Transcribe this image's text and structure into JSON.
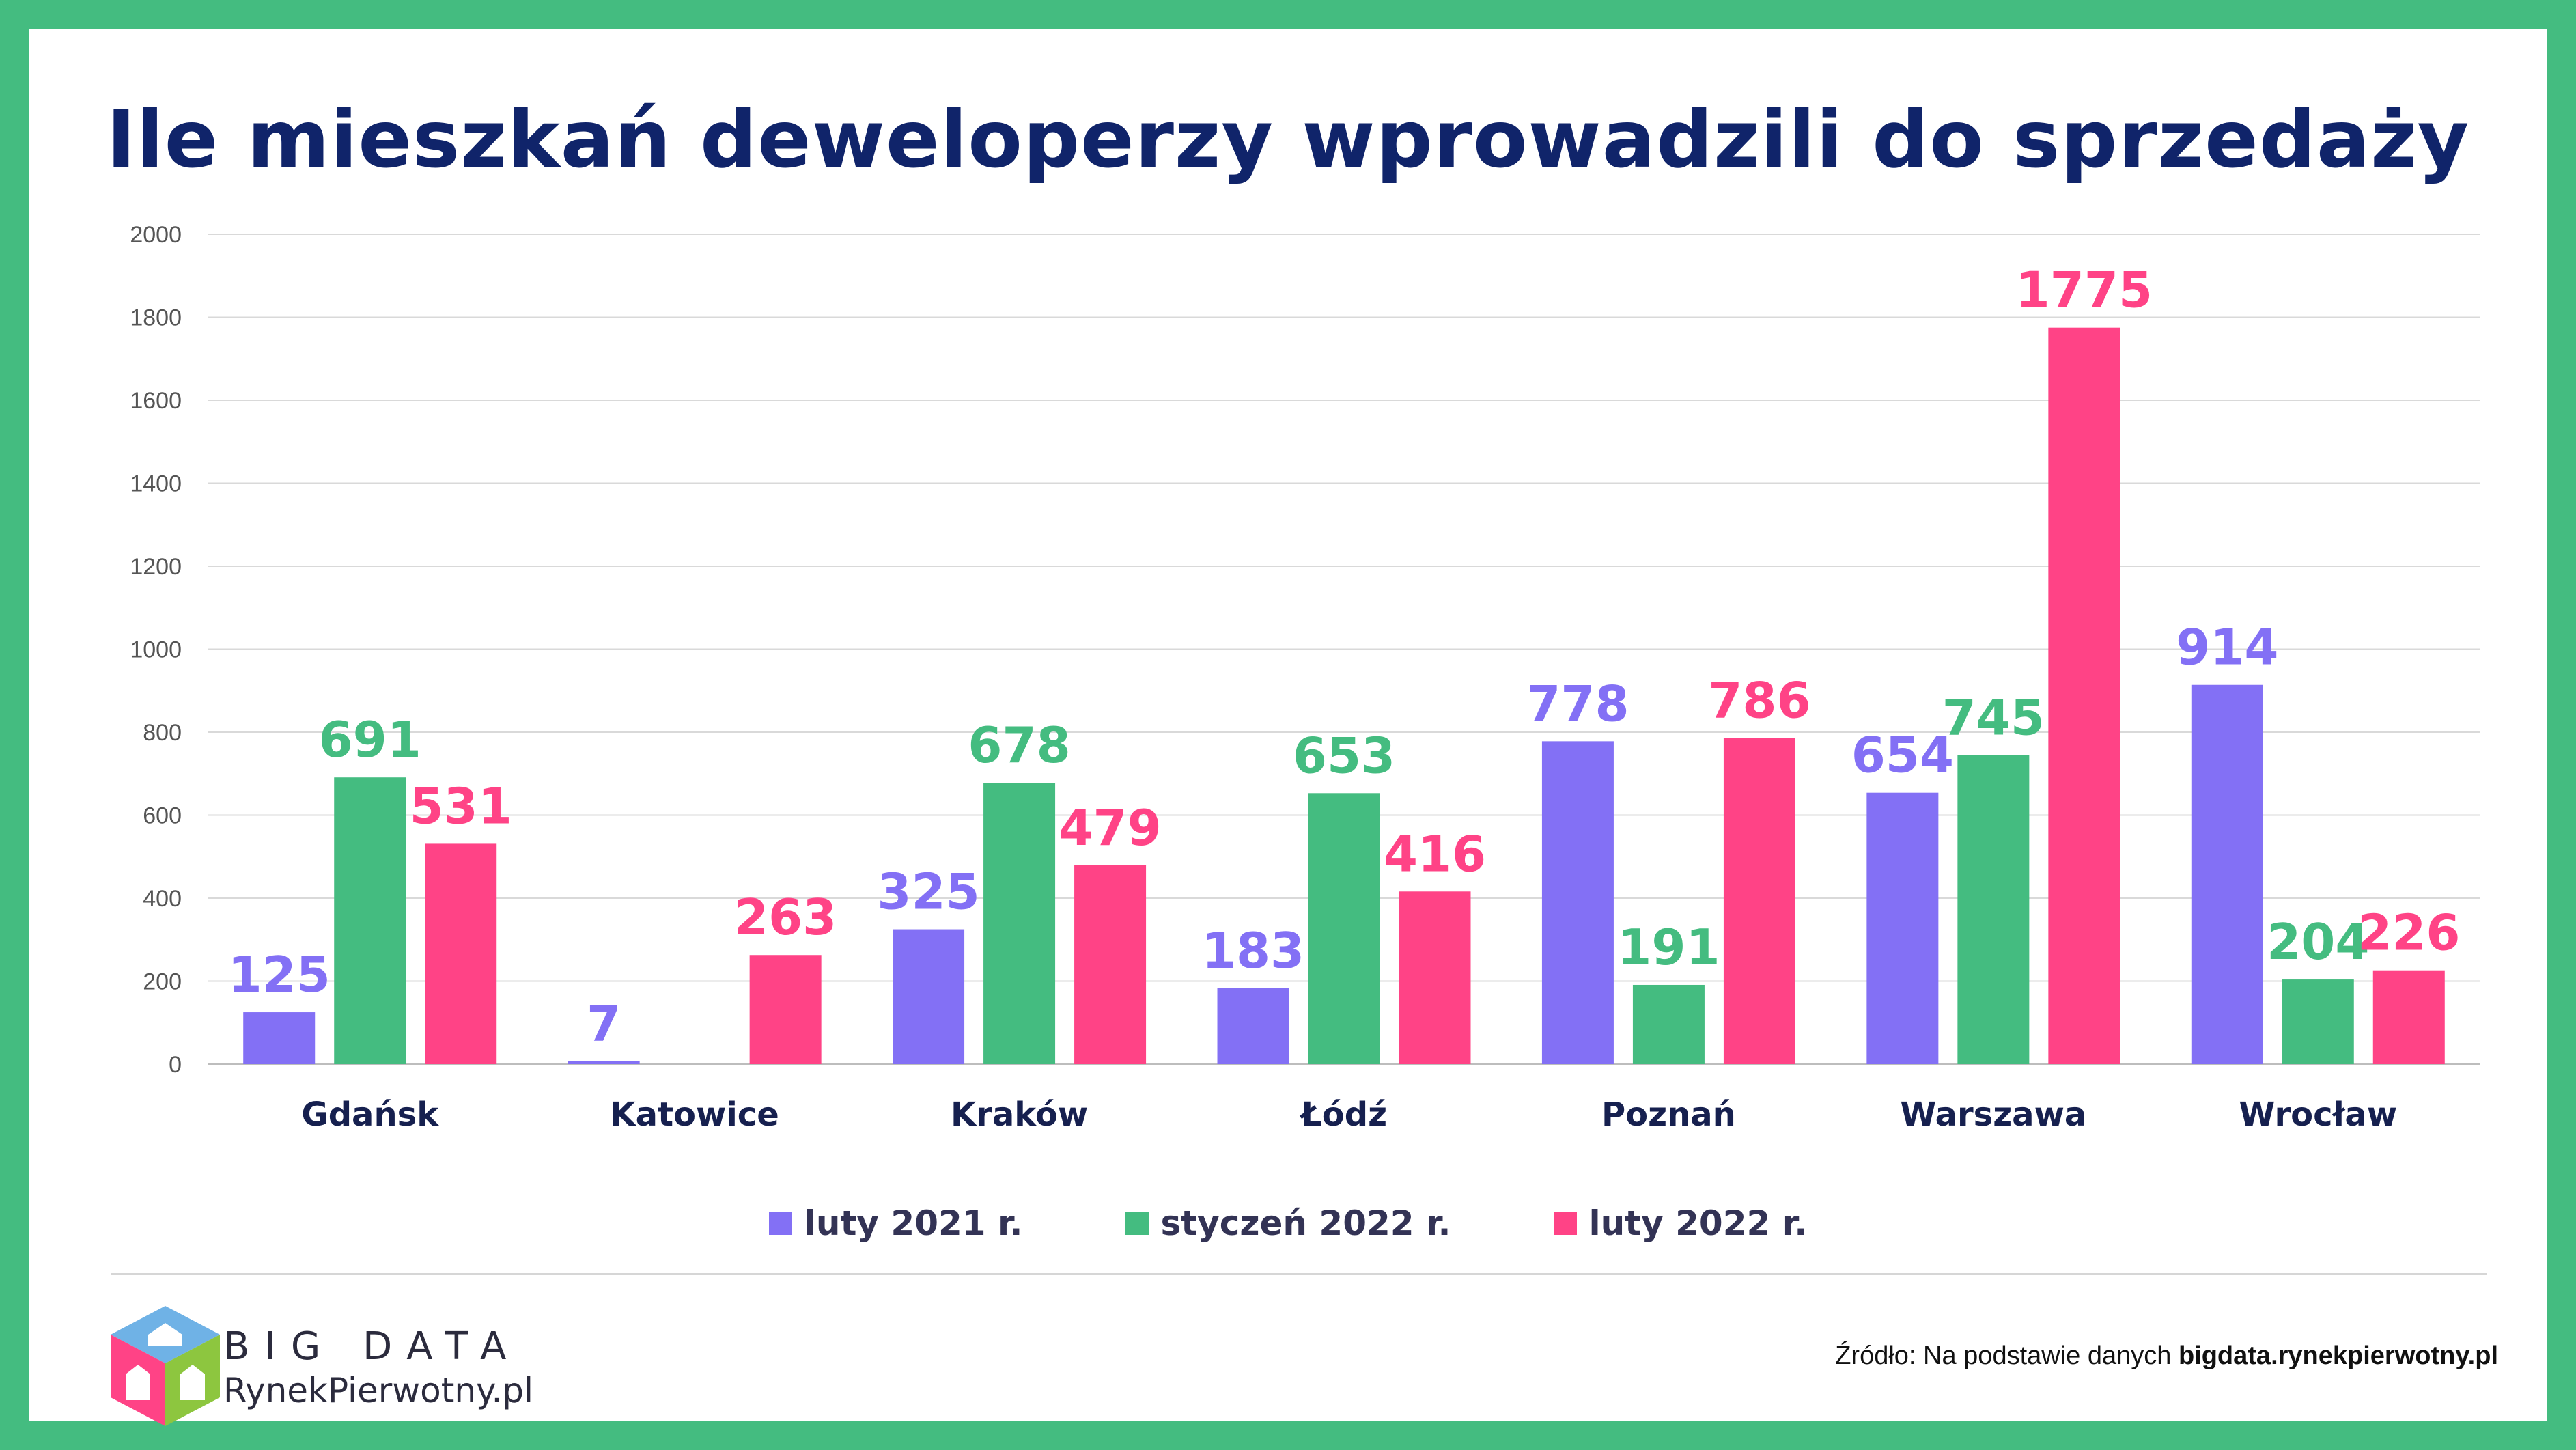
{
  "title": "Ile mieszkań deweloperzy wprowadzili do sprzedaży",
  "chart_data": {
    "type": "bar",
    "categories": [
      "Gdańsk",
      "Katowice",
      "Kraków",
      "Łódź",
      "Poznań",
      "Warszawa",
      "Wrocław"
    ],
    "series": [
      {
        "name": "luty 2021 r.",
        "color": "#8370f5",
        "values": [
          125,
          7,
          325,
          183,
          778,
          654,
          914
        ]
      },
      {
        "name": "styczeń 2022 r.",
        "color": "#44bc80",
        "values": [
          691,
          null,
          678,
          653,
          191,
          745,
          204
        ]
      },
      {
        "name": "luty 2022 r.",
        "color": "#ff4386",
        "values": [
          531,
          263,
          479,
          416,
          786,
          1775,
          226
        ]
      }
    ],
    "ylim": [
      0,
      2000
    ],
    "yticks": [
      0,
      200,
      400,
      600,
      800,
      1000,
      1200,
      1400,
      1600,
      1800,
      2000
    ],
    "grid": true,
    "legend_position": "bottom"
  },
  "footer": {
    "brand_line1": "BIG DATA",
    "brand_line2": "RynekPierwotny.pl",
    "source_prefix": "Źródło: Na podstawie danych ",
    "source_site": "bigdata.rynekpierwotny.pl"
  }
}
